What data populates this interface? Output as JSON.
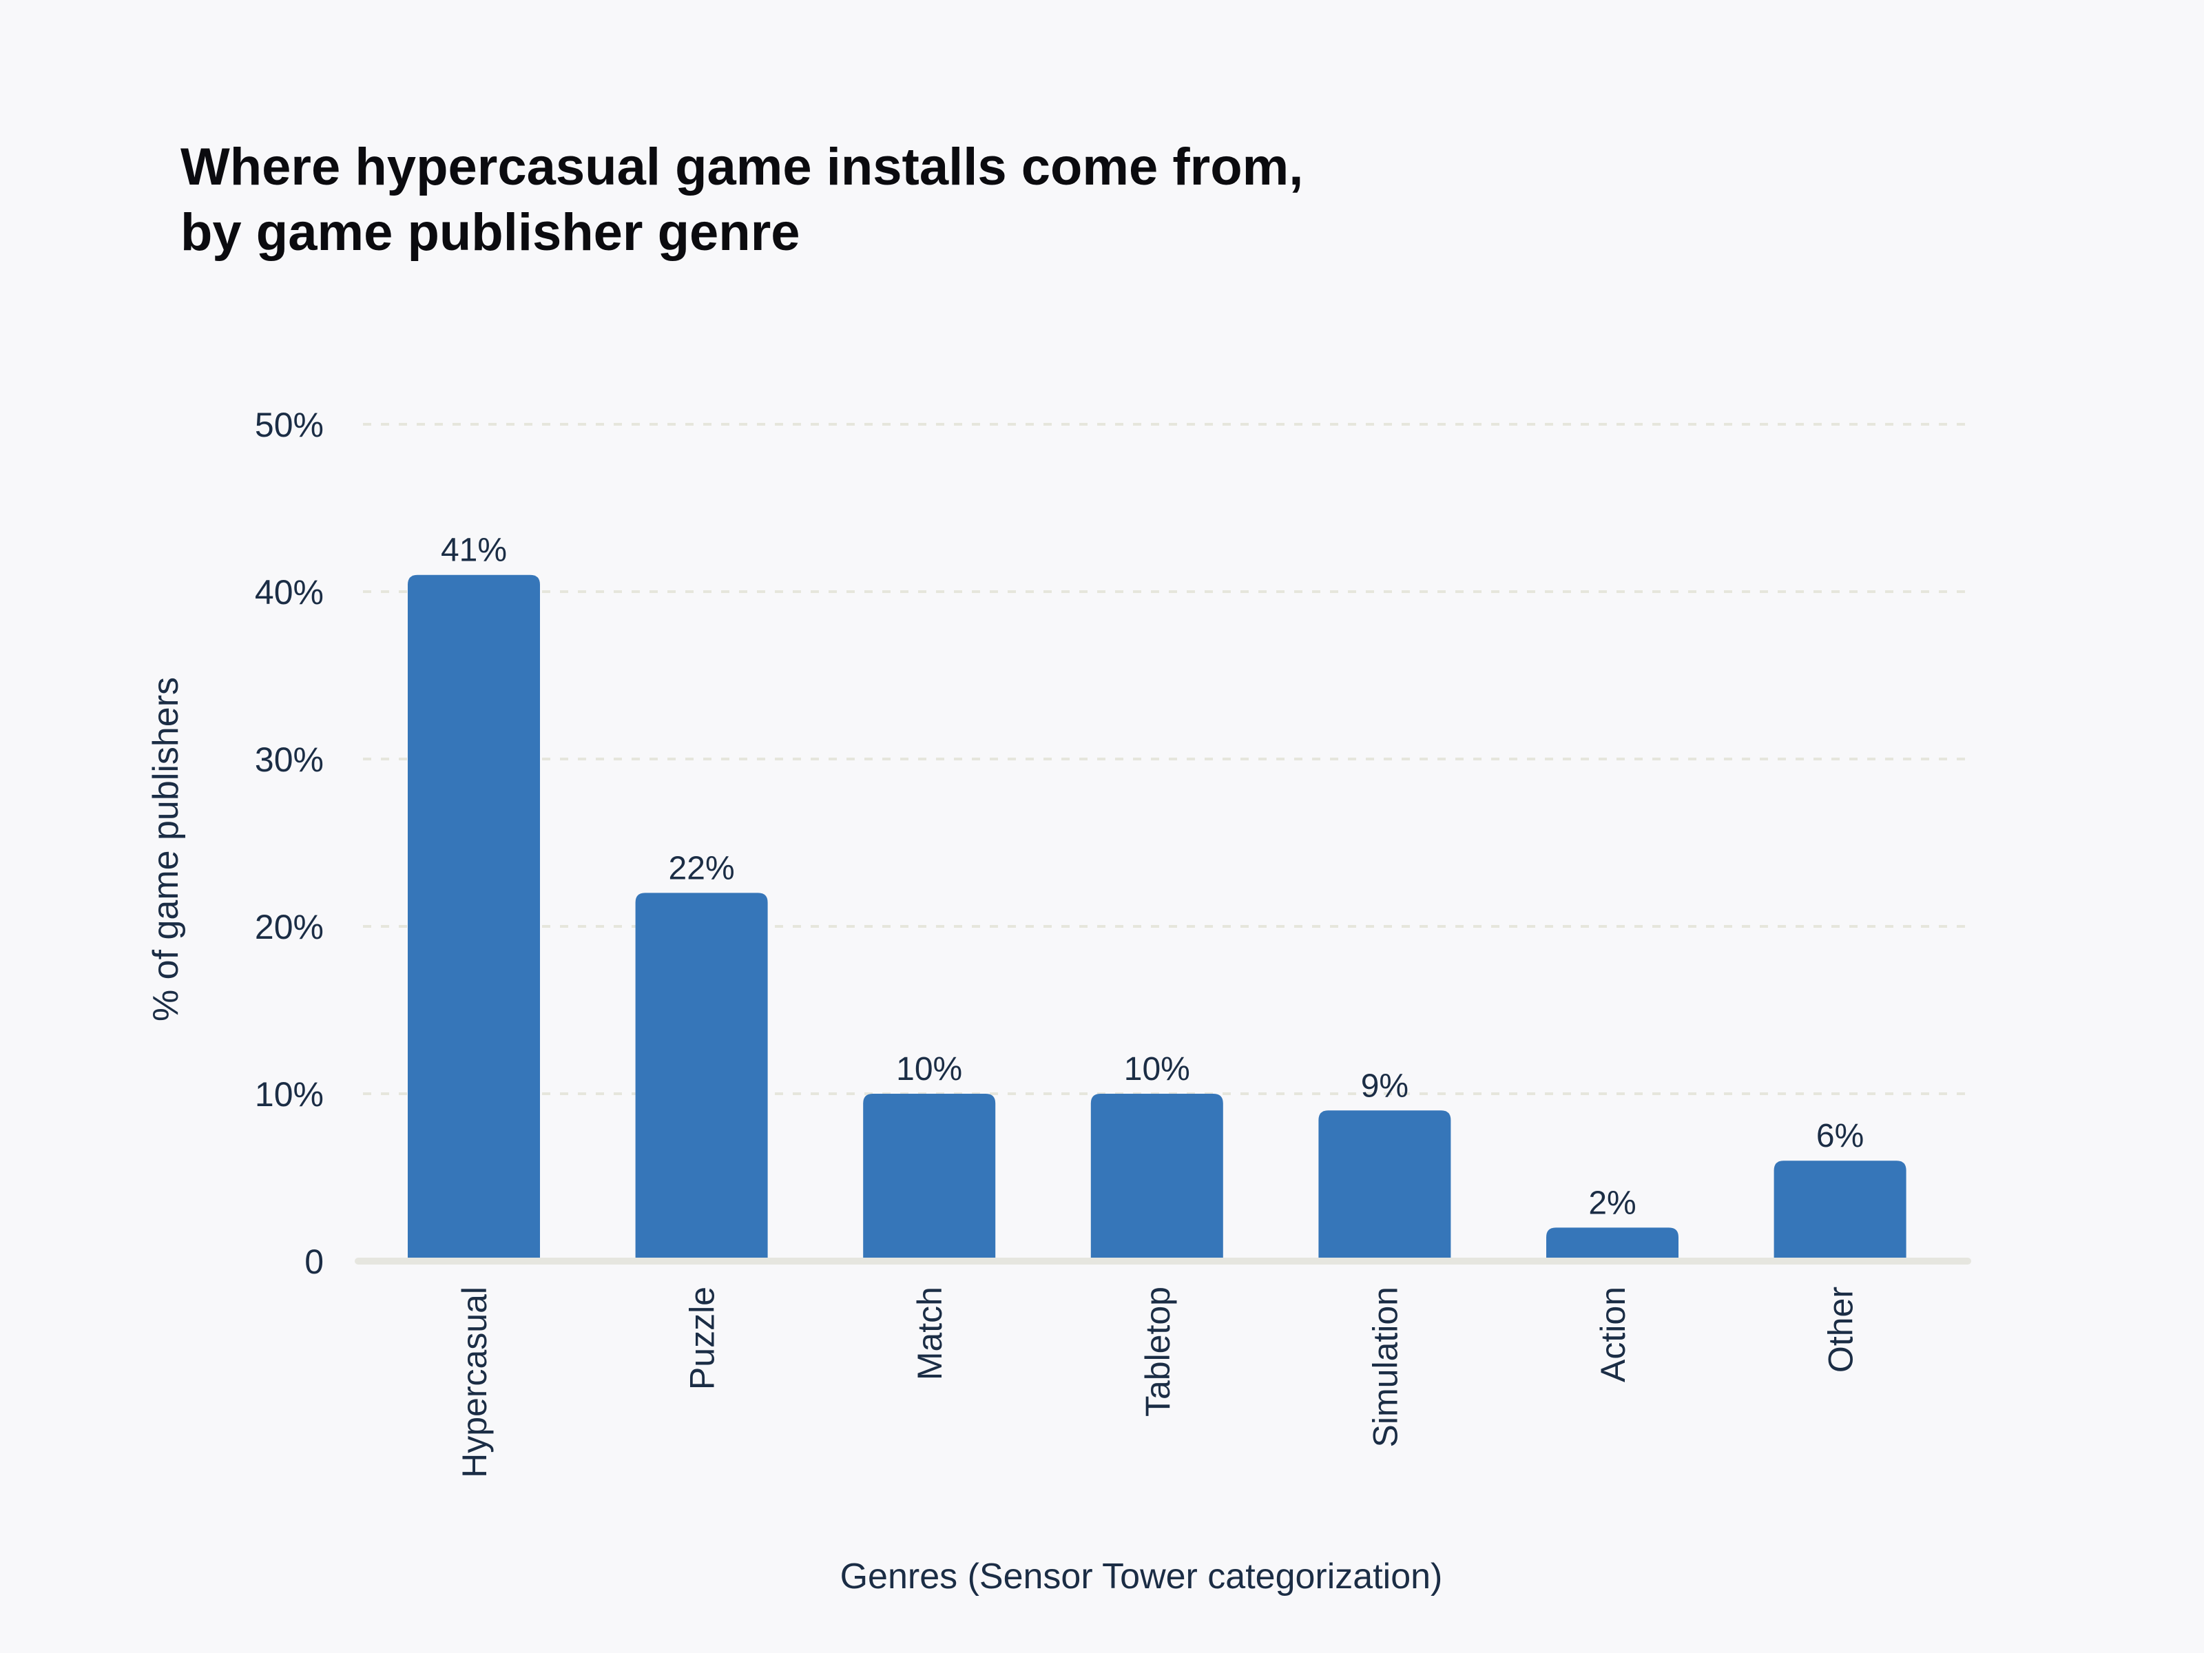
{
  "chart_data": {
    "type": "bar",
    "title": [
      "Where hypercasual game installs come from,",
      "by game publisher genre"
    ],
    "xlabel": "Genres (Sensor Tower categorization)",
    "ylabel": "% of game publishers",
    "categories": [
      "Hypercasual",
      "Puzzle",
      "Match",
      "Tabletop",
      "Simulation",
      "Action",
      "Other"
    ],
    "values": [
      41,
      22,
      10,
      10,
      9,
      2,
      6
    ],
    "data_labels": [
      "41%",
      "22%",
      "10%",
      "10%",
      "9%",
      "2%",
      "6%"
    ],
    "ylim": [
      0,
      50
    ],
    "yticks": [
      0,
      10,
      20,
      30,
      40,
      50
    ],
    "ytick_labels": [
      "0",
      "10%",
      "20%",
      "30%",
      "40%",
      "50%"
    ],
    "grid": true,
    "legend": "none",
    "colors": {
      "bar": "#3676b9",
      "background": "#f8f8fa",
      "text": "#1b2d45",
      "grid": "#e6e6dc",
      "title": "#0b0b0f"
    }
  }
}
